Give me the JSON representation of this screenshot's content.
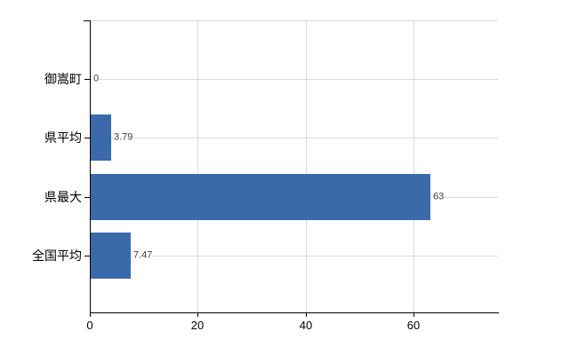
{
  "chart_data": {
    "type": "bar",
    "orientation": "horizontal",
    "title": "",
    "xlabel": "",
    "ylabel": "",
    "categories": [
      "御嵩町",
      "県平均",
      "県最大",
      "全国平均"
    ],
    "values": [
      0,
      3.79,
      63,
      7.47
    ],
    "value_labels": [
      "0",
      "3.79",
      "63",
      "7.47"
    ],
    "x_ticks": [
      0,
      20,
      40,
      60
    ],
    "x_tick_labels": [
      "0",
      "20",
      "40",
      "60"
    ],
    "xlim": [
      0,
      75.7
    ],
    "grid": "on",
    "legend": "none",
    "bar_color": "#3a6aa9",
    "grid_color": "#d9d9d9",
    "axis_color": "#000000",
    "value_label_color": "#3d3d3d",
    "background_color": "#ffffff"
  }
}
